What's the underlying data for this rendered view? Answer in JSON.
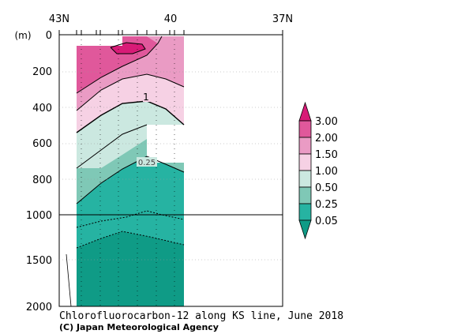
{
  "chart_data": {
    "type": "heatmap",
    "title": "Chlorofluorocarbon-12 along KS line, June 2018",
    "credit": "(C) Japan Meteorological Agency",
    "ylabel": "(m)",
    "x_ticks": [
      {
        "value": 43,
        "label": "43N"
      },
      {
        "value": 40,
        "label": "40"
      },
      {
        "value": 37,
        "label": "37N"
      }
    ],
    "y_ticks_upper": [
      0,
      200,
      400,
      600,
      800,
      1000
    ],
    "y_ticks_lower": [
      1500,
      2000
    ],
    "ylim": [
      0,
      2000
    ],
    "xlim": [
      43,
      37
    ],
    "y_break": 1000,
    "levels": [
      "3.00",
      "2.00",
      "1.50",
      "1.00",
      "0.50",
      "0.25",
      "0.05"
    ],
    "colors": {
      "above_3": "#d81b77",
      "2_to_3": "#e0589b",
      "1.5_to_2": "#ea9bc4",
      "1_to_1.5": "#f6d1e4",
      "0.5_to_1": "#cbe8e0",
      "0.25_to_0.5": "#7fc8b6",
      "0.05_to_0.25": "#26b3a2",
      "below_0.05": "#0f9b86"
    },
    "contour_labels": [
      "1",
      "0.25"
    ],
    "stations_lat": [
      42.4,
      41.9,
      41.4,
      40.9,
      40.4,
      39.9
    ]
  }
}
